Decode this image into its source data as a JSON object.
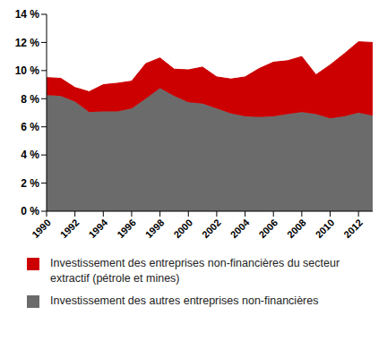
{
  "chart_data": {
    "type": "area",
    "stacked": true,
    "grid": false,
    "x": [
      1990,
      1991,
      1992,
      1993,
      1994,
      1995,
      1996,
      1997,
      1998,
      1999,
      2000,
      2001,
      2002,
      2003,
      2004,
      2005,
      2006,
      2007,
      2008,
      2009,
      2010,
      2011,
      2012,
      2013
    ],
    "series": [
      {
        "name": "Investissement des entreprises non-financières du secteur extractif (pétrole et mines)",
        "color": "#cc0000",
        "values": [
          1.25,
          1.25,
          1.0,
          1.45,
          1.9,
          2.0,
          1.95,
          2.5,
          2.15,
          1.9,
          2.3,
          2.6,
          2.25,
          2.45,
          2.8,
          3.45,
          3.85,
          3.8,
          3.95,
          2.8,
          3.8,
          4.45,
          5.05,
          5.2
        ]
      },
      {
        "name": "Investissement des autres entreprises non-financières",
        "color": "#6b6b6b",
        "values": [
          8.25,
          8.2,
          7.8,
          7.05,
          7.1,
          7.1,
          7.3,
          8.0,
          8.75,
          8.2,
          7.75,
          7.65,
          7.3,
          6.95,
          6.75,
          6.7,
          6.75,
          6.9,
          7.05,
          6.9,
          6.6,
          6.75,
          7.0,
          6.8
        ]
      }
    ],
    "xlim": [
      1990,
      2013
    ],
    "xticks": [
      1990,
      1992,
      1994,
      1996,
      1998,
      2000,
      2002,
      2004,
      2006,
      2008,
      2010,
      2012
    ],
    "ylim": [
      0,
      14
    ],
    "yticks": [
      {
        "value": 0,
        "label": "0 %"
      },
      {
        "value": 2,
        "label": "2 %"
      },
      {
        "value": 4,
        "label": "4 %"
      },
      {
        "value": 6,
        "label": "6 %"
      },
      {
        "value": 8,
        "label": "8 %"
      },
      {
        "value": 10,
        "label": "10 %"
      },
      {
        "value": 12,
        "label": "12 %"
      },
      {
        "value": 14,
        "label": "14 %"
      }
    ]
  }
}
